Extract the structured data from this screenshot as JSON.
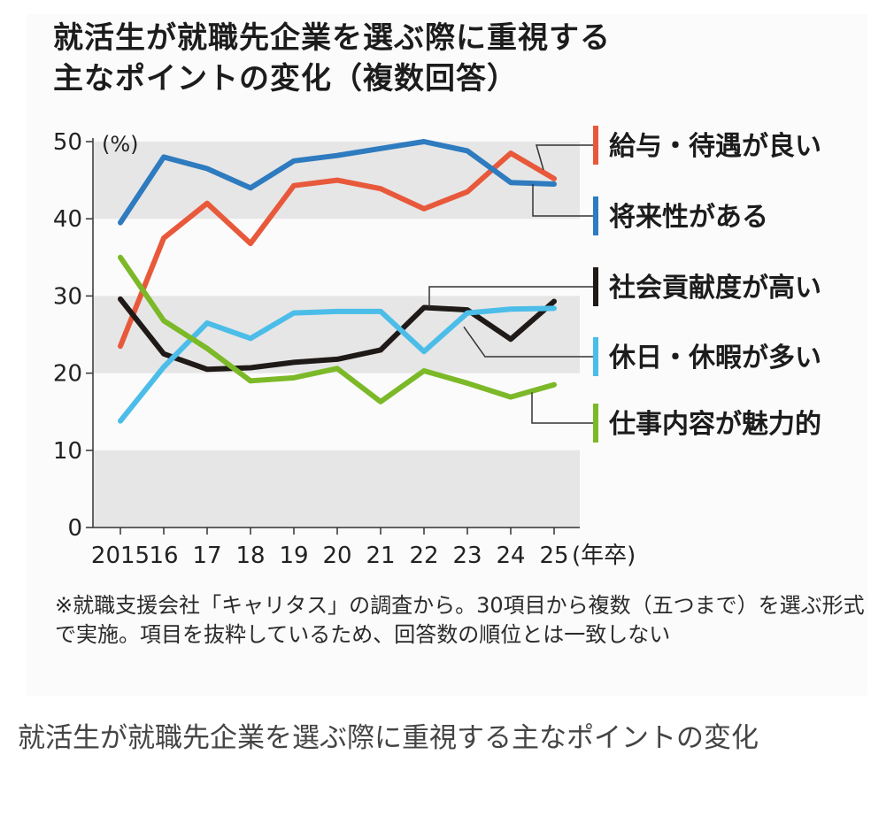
{
  "chart_data": {
    "type": "line",
    "title_lines": [
      "就活生が就職先企業を選ぶ際に重視する",
      "主なポイントの変化（複数回答）"
    ],
    "y_unit_label": "(%)",
    "x_unit_label": "(年卒)",
    "categories": [
      "2015",
      "16",
      "17",
      "18",
      "19",
      "20",
      "21",
      "22",
      "23",
      "24",
      "25"
    ],
    "ylim": [
      0,
      50
    ],
    "yticks": [
      0,
      10,
      20,
      30,
      40,
      50
    ],
    "grid": "alternating horizontal bands",
    "legend": "right, labels connected by leader lines",
    "series": [
      {
        "name": "給与・待遇が良い",
        "color": "#e8593b",
        "values": [
          23.5,
          37.5,
          42.0,
          36.8,
          44.3,
          45.0,
          43.9,
          41.3,
          43.5,
          48.5,
          45.2
        ]
      },
      {
        "name": "将来性がある",
        "color": "#2e7bbf",
        "values": [
          39.5,
          48.0,
          46.5,
          44.0,
          47.5,
          48.2,
          49.1,
          50.0,
          48.8,
          44.7,
          44.5
        ]
      },
      {
        "name": "社会貢献度が高い",
        "color": "#1f1a17",
        "values": [
          29.6,
          22.5,
          20.5,
          20.7,
          21.4,
          21.8,
          23.0,
          28.5,
          28.2,
          24.4,
          29.3
        ]
      },
      {
        "name": "休日・休暇が多い",
        "color": "#4bbde8",
        "values": [
          13.8,
          20.8,
          26.5,
          24.5,
          27.8,
          28.0,
          28.0,
          22.8,
          27.8,
          28.3,
          28.4
        ]
      },
      {
        "name": "仕事内容が魅力的",
        "color": "#7cb928",
        "values": [
          35.0,
          26.8,
          23.2,
          19.0,
          19.4,
          20.6,
          16.3,
          20.3,
          18.7,
          16.9,
          18.5
        ]
      }
    ]
  },
  "note": "※就職支援会社「キャリタス」の調査から。30項目から複数（五つまで）を選ぶ形式で実施。項目を抜粋しているため、回答数の順位とは一致しない",
  "caption": "就活生が就職先企業を選ぶ際に重視する主なポイントの変化"
}
